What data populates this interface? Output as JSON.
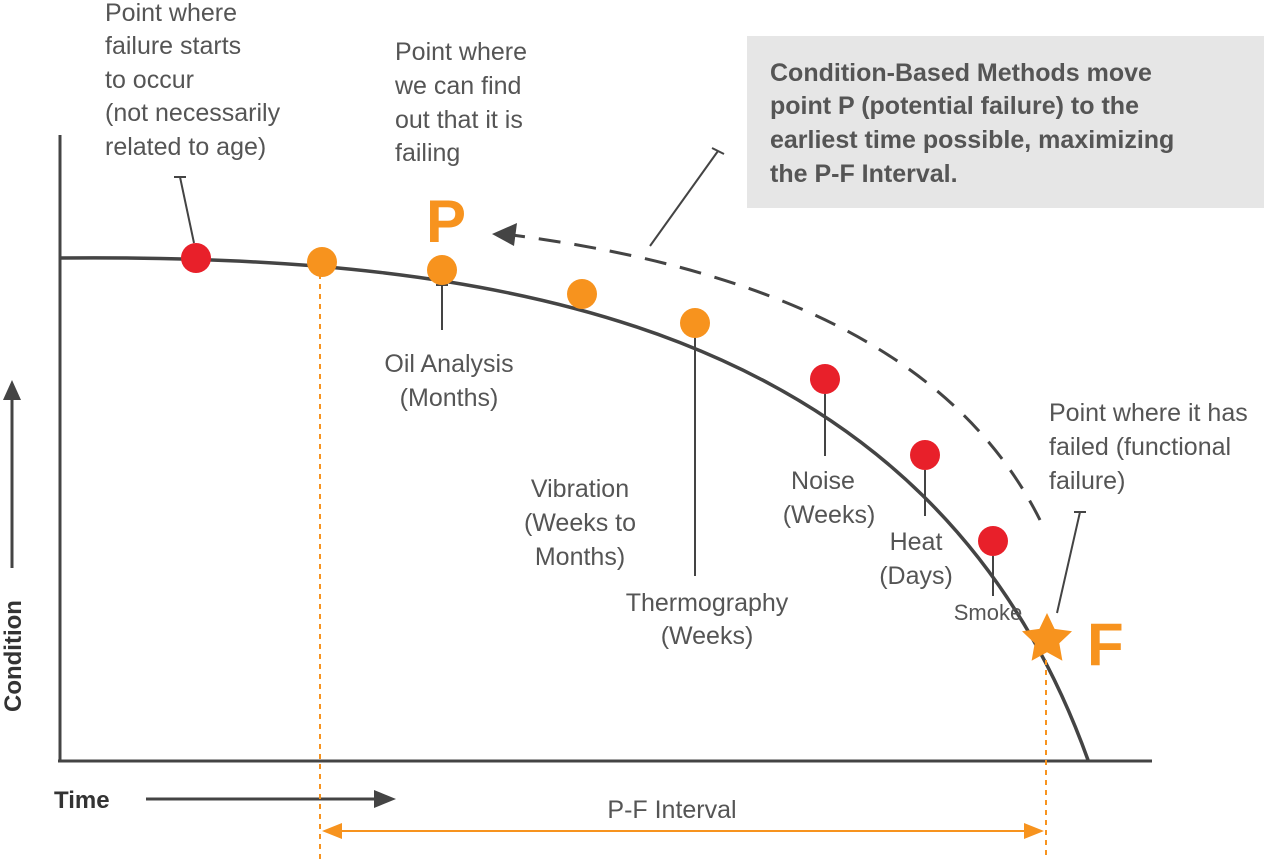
{
  "colors": {
    "orange": "#f7931e",
    "red": "#e8202a",
    "curve": "#444444",
    "text": "#555555",
    "callout_bg": "#e6e6e6"
  },
  "annotations": {
    "failure_start": [
      "Point where",
      "failure starts",
      "to occur",
      "(not necessarily",
      "related to age)"
    ],
    "find_out": [
      "Point where",
      "we can find",
      "out that it is",
      "failing"
    ],
    "functional_failure": [
      "Point where it has",
      "failed (functional",
      "failure)"
    ]
  },
  "callout": [
    "Condition-Based Methods move",
    "point P (potential failure) to the",
    "earliest time possible, maximizing",
    "the P-F Interval."
  ],
  "methods": {
    "oil": [
      "Oil Analysis",
      "(Months)"
    ],
    "vibration": [
      "Vibration",
      "(Weeks to",
      "Months)"
    ],
    "thermography": [
      "Thermography",
      "(Weeks)"
    ],
    "noise": [
      "Noise",
      "(Weeks)"
    ],
    "heat": [
      "Heat",
      "(Days)"
    ],
    "smoke": "Smoke"
  },
  "labels": {
    "p": "P",
    "f": "F",
    "y_axis": "Condition",
    "x_axis": "Time",
    "interval": "P-F Interval"
  },
  "icons": {
    "star": "star-icon",
    "arrow": "arrow-icon"
  }
}
